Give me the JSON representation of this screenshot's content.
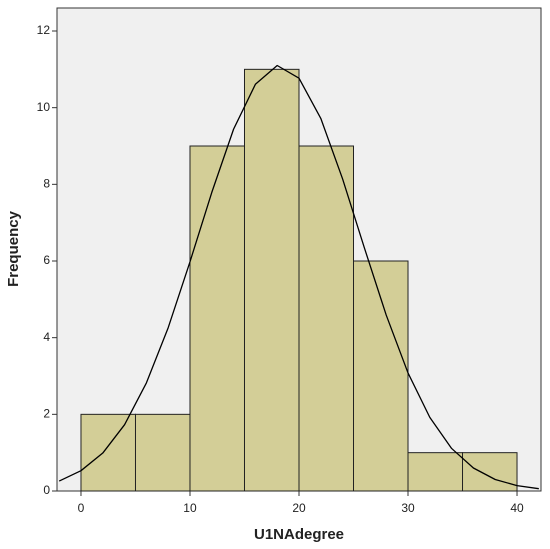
{
  "chart_data": {
    "type": "histogram",
    "x_label": "U1NAdegree",
    "y_label": "Frequency",
    "bins": [
      0,
      5,
      10,
      15,
      20,
      25,
      30,
      35,
      40
    ],
    "values": [
      2,
      2,
      9,
      11,
      9,
      6,
      1,
      1
    ],
    "color": "#d3ce97",
    "curve": {
      "color": "#000000",
      "x": [
        -2,
        0,
        2,
        4,
        6,
        8,
        10,
        12,
        14,
        16,
        18,
        20,
        22,
        24,
        26,
        28,
        30,
        32,
        34,
        36,
        38,
        40,
        42
      ],
      "values": [
        0.26,
        0.53,
        0.99,
        1.73,
        2.82,
        4.26,
        5.98,
        7.79,
        9.44,
        10.61,
        11.1,
        10.77,
        9.72,
        8.14,
        6.34,
        4.59,
        3.08,
        1.92,
        1.11,
        0.6,
        0.3,
        0.14,
        0.06
      ]
    },
    "xlim": [
      -2.2,
      42.2
    ],
    "ylim": [
      0,
      12.6
    ],
    "xticks": [
      0,
      10,
      20,
      30,
      40
    ],
    "yticks": [
      0,
      2,
      4,
      6,
      8,
      10,
      12
    ],
    "background": "#f0f0f0"
  }
}
